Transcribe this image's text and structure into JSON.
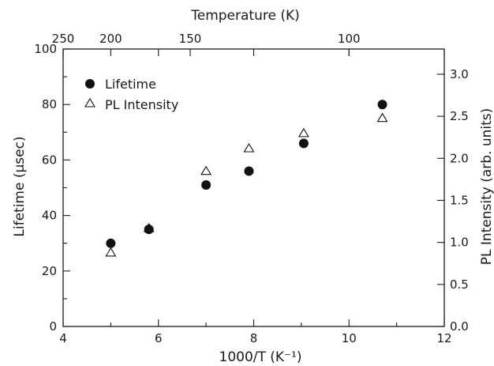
{
  "chart_data": {
    "type": "scatter",
    "xlabel": "1000/T (K⁻¹)",
    "ylabel": "Lifetime (μsec)",
    "y2label": "PL Intensity (arb. units)",
    "top_axis_label": "Temperature (K)",
    "xlim": [
      4,
      12
    ],
    "ylim": [
      0,
      100
    ],
    "y2lim": [
      0.0,
      3.3
    ],
    "x_ticks": [
      "4",
      "6",
      "8",
      "10",
      "12"
    ],
    "y_ticks": [
      "0",
      "20",
      "40",
      "60",
      "80",
      "100"
    ],
    "y2_ticks": [
      "0.0",
      "0.5",
      "1.0",
      "1.5",
      "2.0",
      "2.5",
      "3.0"
    ],
    "top_ticks": [
      "250",
      "200",
      "150",
      "100"
    ],
    "legend_position": "top-left",
    "grid": false,
    "series": [
      {
        "name": "Lifetime",
        "marker": "filled-circle",
        "axis": "left",
        "x": [
          5.0,
          5.8,
          7.0,
          7.9,
          9.05,
          10.7
        ],
        "y": [
          30,
          35,
          51,
          56,
          66,
          80
        ]
      },
      {
        "name": "PL Intensity",
        "marker": "open-triangle",
        "axis": "right",
        "x": [
          5.0,
          5.8,
          7.0,
          7.9,
          9.05,
          10.7
        ],
        "y": [
          0.88,
          1.17,
          1.85,
          2.12,
          2.3,
          2.48
        ]
      }
    ]
  }
}
